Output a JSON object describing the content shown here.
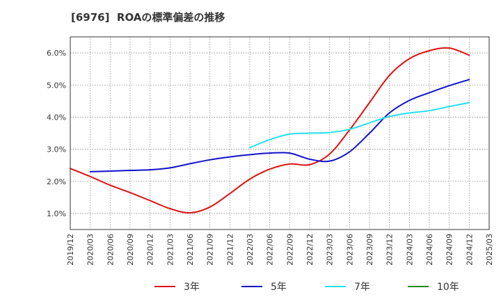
{
  "title": "[6976]  ROAの標準偏差の推移",
  "chart_data": {
    "type": "line",
    "title": "[6976]  ROAの標準偏差の推移",
    "xlabel": "",
    "ylabel": "",
    "x_ticks": [
      "2019/12",
      "2020/03",
      "2020/06",
      "2020/09",
      "2020/12",
      "2021/03",
      "2021/06",
      "2021/09",
      "2021/12",
      "2022/03",
      "2022/06",
      "2022/09",
      "2022/12",
      "2023/03",
      "2023/06",
      "2023/09",
      "2023/12",
      "2024/03",
      "2024/06",
      "2024/09",
      "2024/12",
      "2025/03"
    ],
    "y_ticks": [
      "1.0%",
      "2.0%",
      "3.0%",
      "4.0%",
      "5.0%",
      "6.0%"
    ],
    "y_tick_values": [
      1.0,
      2.0,
      3.0,
      4.0,
      5.0,
      6.0
    ],
    "ylim": [
      0.5,
      6.5
    ],
    "grid": true,
    "legend_position": "bottom",
    "series": [
      {
        "name": "3年",
        "color": "#dd1111",
        "points": [
          [
            "2019/12",
            2.4
          ],
          [
            "2020/03",
            2.15
          ],
          [
            "2020/06",
            1.88
          ],
          [
            "2020/09",
            1.65
          ],
          [
            "2020/12",
            1.4
          ],
          [
            "2021/03",
            1.15
          ],
          [
            "2021/06",
            1.02
          ],
          [
            "2021/09",
            1.2
          ],
          [
            "2021/12",
            1.62
          ],
          [
            "2022/03",
            2.07
          ],
          [
            "2022/06",
            2.38
          ],
          [
            "2022/09",
            2.54
          ],
          [
            "2022/12",
            2.52
          ],
          [
            "2023/03",
            2.85
          ],
          [
            "2023/06",
            3.6
          ],
          [
            "2023/09",
            4.45
          ],
          [
            "2023/12",
            5.3
          ],
          [
            "2024/03",
            5.82
          ],
          [
            "2024/06",
            6.07
          ],
          [
            "2024/09",
            6.15
          ],
          [
            "2024/12",
            5.93
          ]
        ]
      },
      {
        "name": "5年",
        "color": "#1111cc",
        "points": [
          [
            "2020/03",
            2.3
          ],
          [
            "2020/06",
            2.32
          ],
          [
            "2020/09",
            2.34
          ],
          [
            "2020/12",
            2.36
          ],
          [
            "2021/03",
            2.42
          ],
          [
            "2021/06",
            2.55
          ],
          [
            "2021/09",
            2.67
          ],
          [
            "2021/12",
            2.76
          ],
          [
            "2022/03",
            2.83
          ],
          [
            "2022/06",
            2.88
          ],
          [
            "2022/09",
            2.88
          ],
          [
            "2022/12",
            2.69
          ],
          [
            "2023/03",
            2.63
          ],
          [
            "2023/06",
            2.92
          ],
          [
            "2023/09",
            3.5
          ],
          [
            "2023/12",
            4.13
          ],
          [
            "2024/03",
            4.52
          ],
          [
            "2024/06",
            4.76
          ],
          [
            "2024/09",
            4.98
          ],
          [
            "2024/12",
            5.17
          ]
        ]
      },
      {
        "name": "7年",
        "color": "#22e0f0",
        "points": [
          [
            "2022/03",
            3.05
          ],
          [
            "2022/06",
            3.3
          ],
          [
            "2022/09",
            3.47
          ],
          [
            "2022/12",
            3.5
          ],
          [
            "2023/03",
            3.52
          ],
          [
            "2023/06",
            3.62
          ],
          [
            "2023/09",
            3.82
          ],
          [
            "2023/12",
            4.02
          ],
          [
            "2024/03",
            4.13
          ],
          [
            "2024/06",
            4.2
          ],
          [
            "2024/09",
            4.33
          ],
          [
            "2024/12",
            4.45
          ]
        ]
      },
      {
        "name": "10年",
        "color": "#228822",
        "points": []
      }
    ]
  }
}
